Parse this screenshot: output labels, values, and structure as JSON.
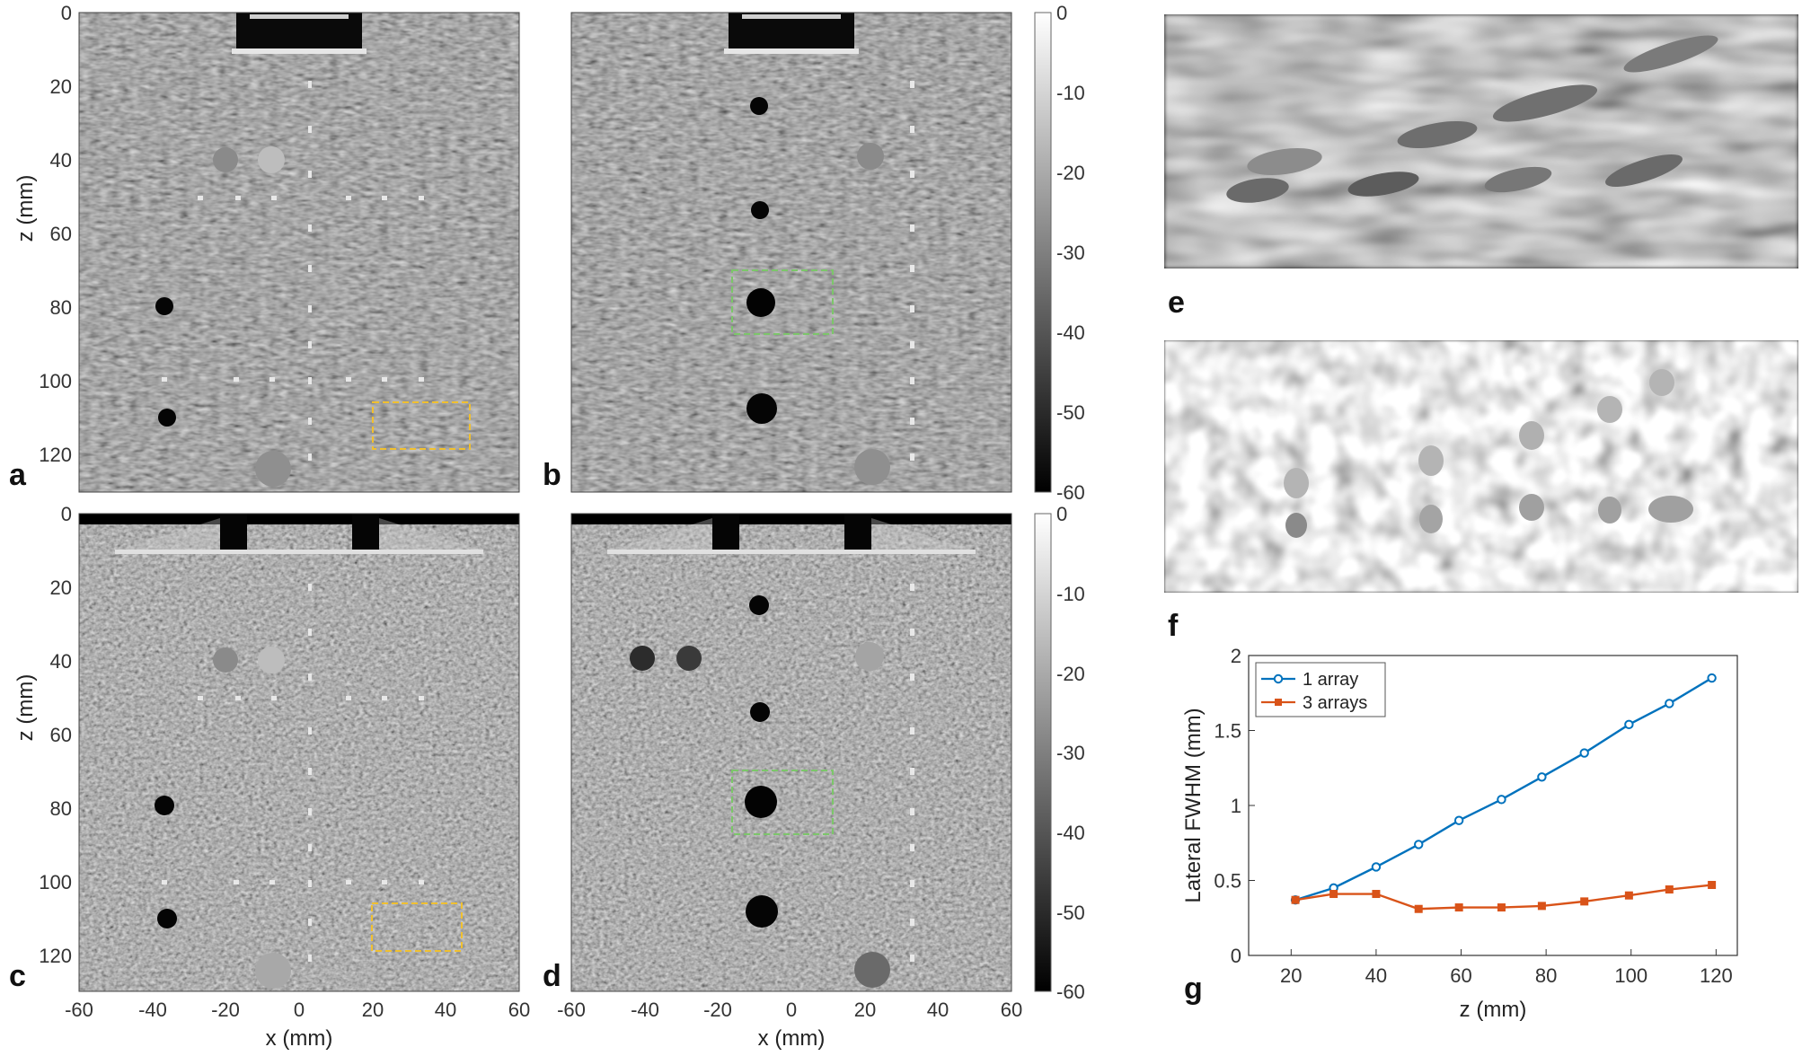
{
  "panels": {
    "a": "a",
    "b": "b",
    "c": "c",
    "d": "d",
    "e": "e",
    "f": "f",
    "g": "g"
  },
  "image_axes": {
    "z_label": "z (mm)",
    "x_label": "x (mm)",
    "z_ticks": [
      "0",
      "20",
      "40",
      "60",
      "80",
      "100",
      "120"
    ],
    "x_ticks": [
      "-60",
      "-40",
      "-20",
      "0",
      "20",
      "40",
      "60"
    ]
  },
  "colorbar": {
    "ticks": [
      "0",
      "-10",
      "-20",
      "-30",
      "-40",
      "-50",
      "-60"
    ]
  },
  "colors": {
    "series_1": "#0072BD",
    "series_2": "#D95319",
    "box_yellow": "#F0C030",
    "box_green": "#7CC66A"
  },
  "chart_data": {
    "type": "line",
    "xlabel": "z (mm)",
    "ylabel": "Lateral FWHM (mm)",
    "xlim": [
      10,
      125
    ],
    "ylim": [
      0,
      2
    ],
    "xticks": [
      20,
      40,
      60,
      80,
      100,
      120
    ],
    "yticks": [
      0,
      0.5,
      1,
      1.5,
      2
    ],
    "ytick_labels": [
      "0",
      "0.5",
      "1",
      "1.5",
      "2"
    ],
    "legend_position": "top-left",
    "grid": false,
    "series": [
      {
        "name": "1 array",
        "marker": "circle",
        "x": [
          21,
          30,
          40,
          50,
          59.5,
          69.5,
          79,
          89,
          99.5,
          109,
          119
        ],
        "y": [
          0.37,
          0.45,
          0.59,
          0.74,
          0.9,
          1.04,
          1.19,
          1.35,
          1.54,
          1.68,
          1.85
        ]
      },
      {
        "name": "3 arrays",
        "marker": "square",
        "x": [
          21,
          30,
          40,
          50,
          59.5,
          69.5,
          79,
          89,
          99.5,
          109,
          119
        ],
        "y": [
          0.37,
          0.41,
          0.41,
          0.31,
          0.32,
          0.32,
          0.33,
          0.36,
          0.4,
          0.44,
          0.47
        ]
      }
    ]
  }
}
